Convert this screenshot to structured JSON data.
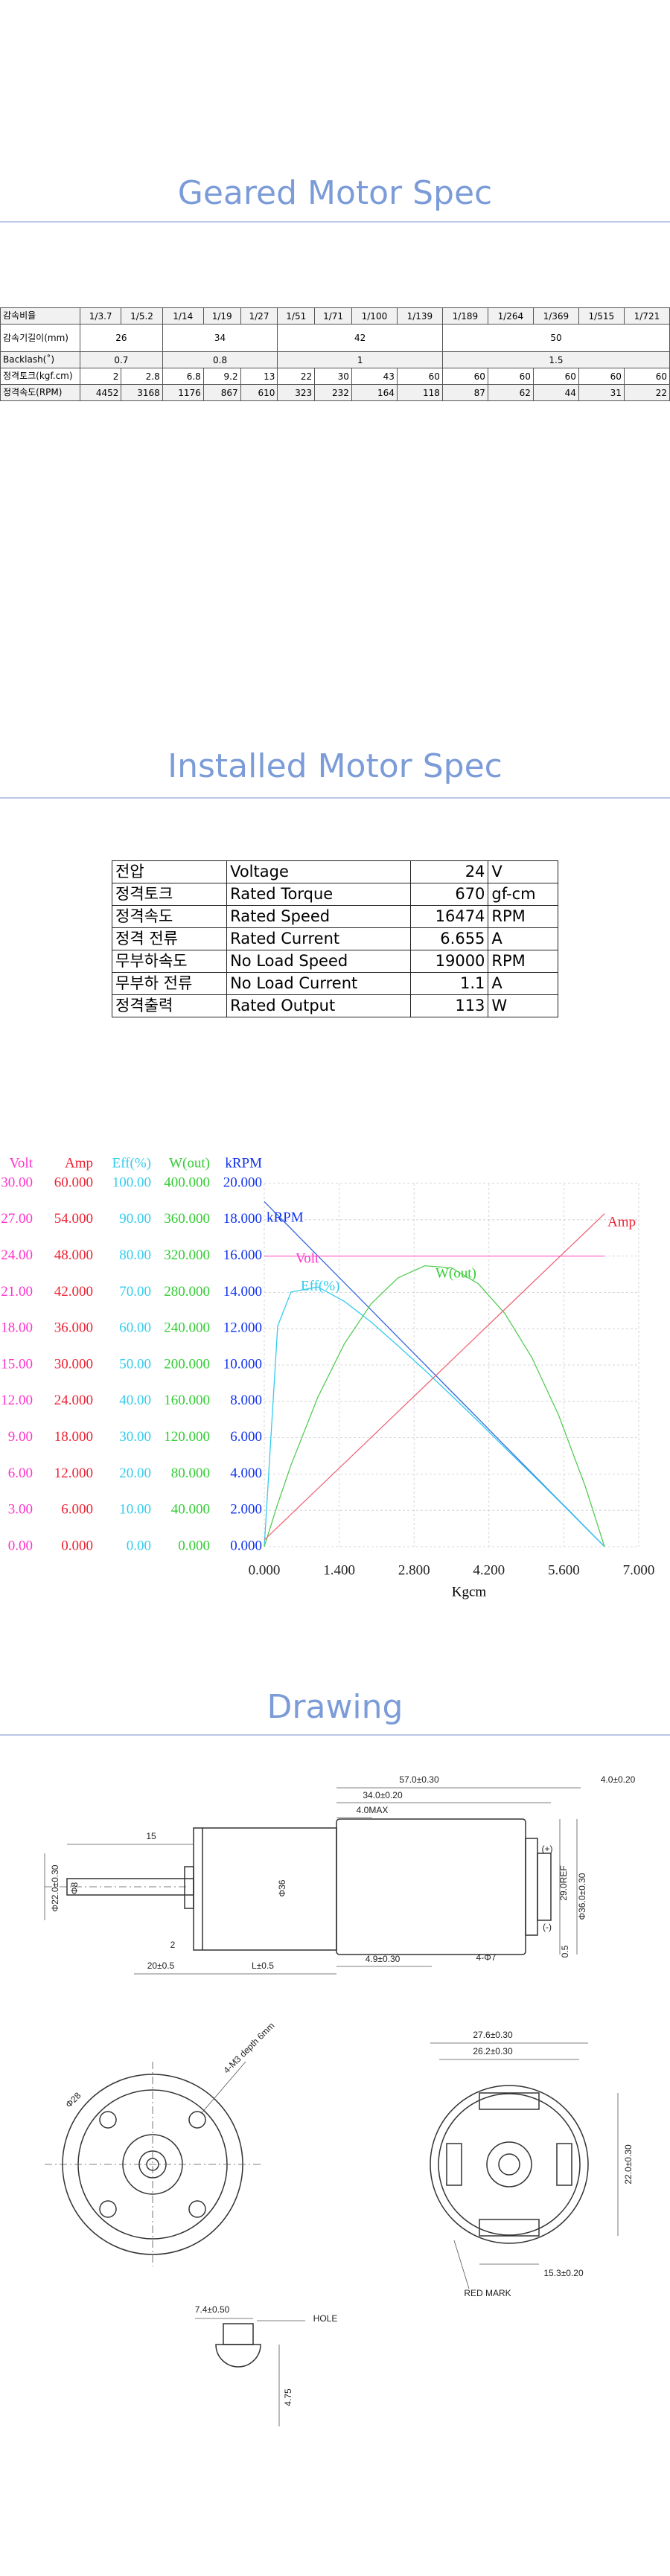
{
  "headings": [
    "Geared Motor Spec",
    "Installed Motor Spec",
    "Drawing"
  ],
  "geared_table": {
    "row_labels": [
      "감속비율",
      "감속기길이(mm)",
      "Backlash(˚)",
      "정격토크(kgf.cm)",
      "정격속도(RPM)"
    ],
    "groups": [
      {
        "length": "26",
        "backlash": "0.7",
        "ratios": [
          "1/3.7",
          "1/5.2"
        ],
        "torque": [
          "2",
          "2.8"
        ],
        "speed": [
          "4452",
          "3168"
        ]
      },
      {
        "length": "34",
        "backlash": "0.8",
        "ratios": [
          "1/14",
          "1/19",
          "1/27"
        ],
        "torque": [
          "6.8",
          "9.2",
          "13"
        ],
        "speed": [
          "1176",
          "867",
          "610"
        ]
      },
      {
        "length": "42",
        "backlash": "1",
        "ratios": [
          "1/51",
          "1/71",
          "1/100",
          "1/139"
        ],
        "torque": [
          "22",
          "30",
          "43",
          "60"
        ],
        "speed": [
          "323",
          "232",
          "164",
          "118"
        ]
      },
      {
        "length": "50",
        "backlash": "1.5",
        "ratios": [
          "1/189",
          "1/264",
          "1/369",
          "1/515",
          "1/721"
        ],
        "torque": [
          "60",
          "60",
          "60",
          "60",
          "60"
        ],
        "speed": [
          "87",
          "62",
          "44",
          "31",
          "22"
        ]
      }
    ]
  },
  "installed_table": {
    "rows": [
      [
        "전압",
        "Voltage",
        "24",
        "V"
      ],
      [
        "정격토크",
        "Rated Torque",
        "670",
        "gf-cm"
      ],
      [
        "정격속도",
        "Rated Speed",
        "16474",
        "RPM"
      ],
      [
        "정격 전류",
        "Rated Current",
        "6.655",
        "A"
      ],
      [
        "무부하속도",
        "No Load Speed",
        "19000",
        "RPM"
      ],
      [
        "무부하 전류",
        "No Load Current",
        "1.1",
        "A"
      ],
      [
        "정격출력",
        "Rated Output",
        "113",
        "W"
      ]
    ]
  },
  "chart_data": {
    "type": "line",
    "xlabel": "Kgcm",
    "grid": true,
    "xlim": [
      0,
      7
    ],
    "xticks": [
      {
        "value": 0,
        "label": "0.000"
      },
      {
        "value": 1.4,
        "label": "1.400"
      },
      {
        "value": 2.8,
        "label": "2.800"
      },
      {
        "value": 4.2,
        "label": "4.200"
      },
      {
        "value": 5.6,
        "label": "5.600"
      },
      {
        "value": 7,
        "label": "7.000"
      }
    ],
    "axes": [
      {
        "name": "Volt",
        "color": "#ff33cc",
        "lim": [
          0,
          30
        ],
        "ticks": [
          {
            "value": 0,
            "label": "0.00"
          },
          {
            "value": 3,
            "label": "3.00"
          },
          {
            "value": 6,
            "label": "6.00"
          },
          {
            "value": 9,
            "label": "9.00"
          },
          {
            "value": 12,
            "label": "12.00"
          },
          {
            "value": 15,
            "label": "15.00"
          },
          {
            "value": 18,
            "label": "18.00"
          },
          {
            "value": 21,
            "label": "21.00"
          },
          {
            "value": 24,
            "label": "24.00"
          },
          {
            "value": 27,
            "label": "27.00"
          },
          {
            "value": 30,
            "label": "30.00"
          }
        ]
      },
      {
        "name": "Amp",
        "color": "#ee2233",
        "lim": [
          0,
          60
        ],
        "ticks": [
          {
            "value": 0,
            "label": "0.000"
          },
          {
            "value": 6,
            "label": "6.000"
          },
          {
            "value": 12,
            "label": "12.000"
          },
          {
            "value": 18,
            "label": "18.000"
          },
          {
            "value": 24,
            "label": "24.000"
          },
          {
            "value": 30,
            "label": "30.000"
          },
          {
            "value": 36,
            "label": "36.000"
          },
          {
            "value": 42,
            "label": "42.000"
          },
          {
            "value": 48,
            "label": "48.000"
          },
          {
            "value": 54,
            "label": "54.000"
          },
          {
            "value": 60,
            "label": "60.000"
          }
        ]
      },
      {
        "name": "Eff(%)",
        "color": "#33ccee",
        "lim": [
          0,
          100
        ],
        "ticks": [
          {
            "value": 0,
            "label": "0.00"
          },
          {
            "value": 10,
            "label": "10.00"
          },
          {
            "value": 20,
            "label": "20.00"
          },
          {
            "value": 30,
            "label": "30.00"
          },
          {
            "value": 40,
            "label": "40.00"
          },
          {
            "value": 50,
            "label": "50.00"
          },
          {
            "value": 60,
            "label": "60.00"
          },
          {
            "value": 70,
            "label": "70.00"
          },
          {
            "value": 80,
            "label": "80.00"
          },
          {
            "value": 90,
            "label": "90.00"
          },
          {
            "value": 100,
            "label": "100.00"
          }
        ]
      },
      {
        "name": "W(out)",
        "color": "#33cc33",
        "lim": [
          0,
          400
        ],
        "ticks": [
          {
            "value": 0,
            "label": "0.000"
          },
          {
            "value": 40,
            "label": "40.000"
          },
          {
            "value": 80,
            "label": "80.000"
          },
          {
            "value": 120,
            "label": "120.000"
          },
          {
            "value": 160,
            "label": "160.000"
          },
          {
            "value": 200,
            "label": "200.000"
          },
          {
            "value": 240,
            "label": "240.000"
          },
          {
            "value": 280,
            "label": "280.000"
          },
          {
            "value": 320,
            "label": "320.000"
          },
          {
            "value": 360,
            "label": "360.000"
          },
          {
            "value": 400,
            "label": "400.000"
          }
        ]
      },
      {
        "name": "kRPM",
        "color": "#1133ee",
        "lim": [
          0,
          20
        ],
        "ticks": [
          {
            "value": 0,
            "label": "0.000"
          },
          {
            "value": 2,
            "label": "2.000"
          },
          {
            "value": 4,
            "label": "4.000"
          },
          {
            "value": 6,
            "label": "6.000"
          },
          {
            "value": 8,
            "label": "8.000"
          },
          {
            "value": 10,
            "label": "10.000"
          },
          {
            "value": 12,
            "label": "12.000"
          },
          {
            "value": 14,
            "label": "14.000"
          },
          {
            "value": 16,
            "label": "16.000"
          },
          {
            "value": 18,
            "label": "18.000"
          },
          {
            "value": 20,
            "label": "20.000"
          }
        ]
      }
    ],
    "x": [
      0,
      0.25,
      0.5,
      1,
      1.5,
      2,
      2.5,
      3,
      3.5,
      4,
      4.5,
      5,
      5.5,
      6,
      6.36
    ],
    "series": [
      {
        "name": "kRPM",
        "axis": 4,
        "color": "#3366dd",
        "values": [
          19,
          18.25,
          17.51,
          16.01,
          14.52,
          13.03,
          11.53,
          10.04,
          8.54,
          7.05,
          5.55,
          4.06,
          2.57,
          1.08,
          0
        ]
      },
      {
        "name": "Volt",
        "axis": 0,
        "color": "#ff66cc",
        "values": [
          24,
          24,
          24,
          24,
          24,
          24,
          24,
          24,
          24,
          24,
          24,
          24,
          24,
          24,
          24
        ]
      },
      {
        "name": "Eff(%)",
        "axis": 2,
        "color": "#33ccee",
        "values": [
          0,
          60.7,
          70.1,
          71.5,
          67.5,
          61.8,
          55.3,
          48.6,
          41.6,
          34.5,
          27.2,
          20.0,
          12.7,
          5.3,
          0
        ]
      },
      {
        "name": "W(out)",
        "axis": 3,
        "color": "#55cc55",
        "values": [
          0,
          46.9,
          89.9,
          164.4,
          223.7,
          267.6,
          296.0,
          309.3,
          307.0,
          289.6,
          256.5,
          208.5,
          145.2,
          66.5,
          0
        ]
      },
      {
        "name": "Amp",
        "axis": 1,
        "color": "#ee6677",
        "values": [
          1.1,
          3.22,
          5.34,
          9.58,
          13.81,
          18.05,
          22.29,
          26.53,
          30.76,
          35.0,
          39.24,
          43.48,
          47.71,
          51.95,
          55.0
        ]
      }
    ]
  },
  "drawing": {
    "labels": [
      "57.0±0.30",
      "4.0±0.20",
      "34.0±0.20",
      "4.0MAX",
      "15",
      "Φ22.0±0.30",
      "Φ8",
      "Φ36",
      "29.0REF",
      "Φ36.0±0.30",
      "2",
      "20±0.5",
      "L±0.5",
      "4.9±0.30",
      "4-Φ7",
      "0.5",
      "(+)",
      "(-)",
      "Φ28",
      "4-M3 depth 6mm",
      "27.6±0.30",
      "26.2±0.30",
      "22.0±0.30",
      "15.3±0.20",
      "RED MARK",
      "7.4±0.50",
      "HOLE",
      "4.75"
    ]
  }
}
